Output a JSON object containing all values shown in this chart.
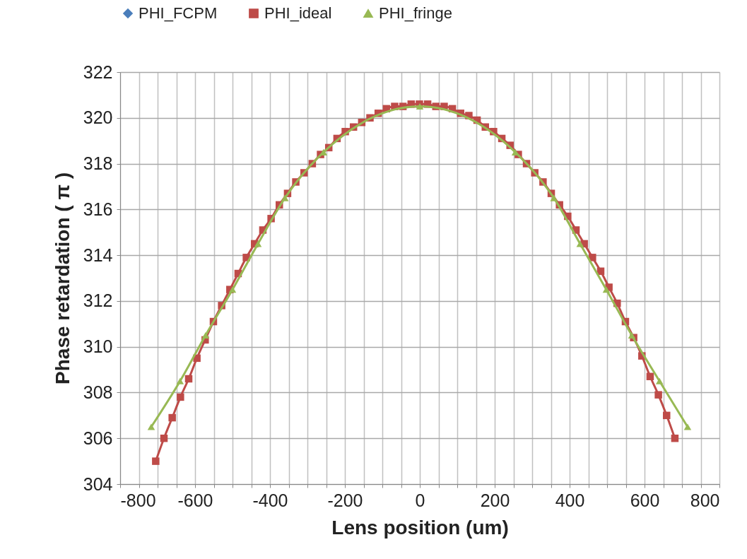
{
  "chart_data": {
    "type": "line",
    "xlabel": "Lens position (um)",
    "ylabel": "Phase retardation ( π )",
    "xlim": [
      -800,
      800
    ],
    "xticks": [
      -800,
      {
        "value": -750,
        "label": null
      },
      {
        "value": -700,
        "label": null
      },
      {
        "value": -650,
        "label": null
      },
      -600,
      {
        "value": -550,
        "label": null
      },
      {
        "value": -500,
        "label": null
      },
      {
        "value": -450,
        "label": null
      },
      -400,
      {
        "value": -350,
        "label": null
      },
      {
        "value": -300,
        "label": null
      },
      {
        "value": -250,
        "label": null
      },
      -200,
      {
        "value": -150,
        "label": null
      },
      {
        "value": -100,
        "label": null
      },
      {
        "value": -50,
        "label": null
      },
      0,
      {
        "value": 50,
        "label": null
      },
      {
        "value": 100,
        "label": null
      },
      {
        "value": 150,
        "label": null
      },
      200,
      {
        "value": 250,
        "label": null
      },
      {
        "value": 300,
        "label": null
      },
      {
        "value": 350,
        "label": null
      },
      400,
      {
        "value": 450,
        "label": null
      },
      {
        "value": 500,
        "label": null
      },
      {
        "value": 550,
        "label": null
      },
      600,
      {
        "value": 650,
        "label": null
      },
      {
        "value": 700,
        "label": null
      },
      {
        "value": 750,
        "label": null
      },
      800
    ],
    "ylim": [
      304,
      322
    ],
    "yticks": [
      304,
      306,
      308,
      310,
      312,
      314,
      316,
      318,
      320,
      322
    ],
    "grid": true,
    "legend": "top",
    "line_style": "solid",
    "series": [
      {
        "name": "PHI_FCPM",
        "color": "#4a7ebb",
        "marker": "diamond"
      },
      {
        "name": "PHI_ideal",
        "color": "#be4b48",
        "marker": "square",
        "x": [
          -705,
          -683,
          -661,
          -639,
          -617,
          -595,
          -573,
          -551,
          -529,
          -507,
          -485,
          -463,
          -441,
          -419,
          -397,
          -375,
          -353,
          -331,
          -309,
          -287,
          -265,
          -243,
          -221,
          -199,
          -177,
          -155,
          -133,
          -111,
          -89,
          -67,
          -45,
          -23,
          -1,
          21,
          43,
          65,
          87,
          109,
          131,
          153,
          175,
          197,
          219,
          241,
          263,
          285,
          307,
          329,
          351,
          373,
          395,
          417,
          439,
          461,
          483,
          505,
          527,
          549,
          571,
          593,
          615,
          637,
          659,
          681
        ],
        "values": [
          305.0,
          306.0,
          306.9,
          307.8,
          308.6,
          309.5,
          310.3,
          311.1,
          311.8,
          312.5,
          313.2,
          313.9,
          314.5,
          315.1,
          315.6,
          316.2,
          316.7,
          317.2,
          317.6,
          318.0,
          318.4,
          318.7,
          319.1,
          319.4,
          319.6,
          319.8,
          320.0,
          320.2,
          320.4,
          320.5,
          320.5,
          320.6,
          320.6,
          320.6,
          320.5,
          320.5,
          320.4,
          320.2,
          320.1,
          319.9,
          319.6,
          319.4,
          319.1,
          318.8,
          318.4,
          318.0,
          317.6,
          317.2,
          316.7,
          316.2,
          315.7,
          315.1,
          314.5,
          313.9,
          313.3,
          312.6,
          311.9,
          311.1,
          310.4,
          309.6,
          308.7,
          307.9,
          307.0,
          306.0
        ]
      },
      {
        "name": "PHI_fringe",
        "color": "#98b954",
        "marker": "triangle",
        "x": [
          -717,
          -640,
          -572,
          -500,
          -432,
          -360,
          -257,
          0,
          255,
          358,
          428,
          498,
          566,
          640,
          715
        ],
        "values": [
          306.5,
          308.5,
          310.5,
          312.5,
          314.5,
          316.5,
          318.5,
          320.5,
          318.5,
          316.5,
          314.5,
          312.5,
          310.5,
          308.5,
          306.5
        ]
      }
    ]
  }
}
